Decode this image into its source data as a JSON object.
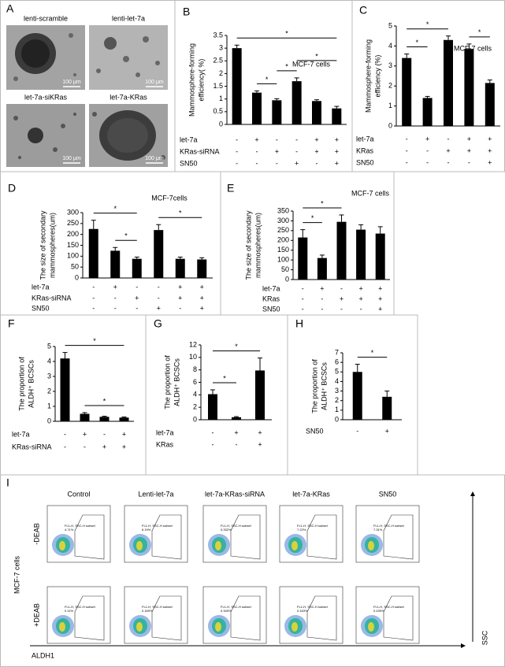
{
  "panel_a": {
    "panel_label": "A",
    "images": [
      {
        "label": "lenti-scramble",
        "scale_bar": "100 μm"
      },
      {
        "label": "lenti-let-7a",
        "scale_bar": "100 μm"
      },
      {
        "label": "let-7a-siKRas",
        "scale_bar": "100 μm"
      },
      {
        "label": "let-7a-KRas",
        "scale_bar": "100 μm"
      }
    ]
  },
  "chart_data": [
    {
      "type": "bar",
      "panel_label": "B",
      "y_label": [
        "Mammosphere-forming",
        "efficiency( %)"
      ],
      "annotation": "MCF-7 cells",
      "color": "#000000",
      "values": [
        3.0,
        1.25,
        0.95,
        1.7,
        0.92,
        0.63
      ],
      "errors": [
        0.12,
        0.07,
        0.06,
        0.13,
        0.05,
        0.08
      ],
      "ylim": [
        0,
        3.5
      ],
      "yticks": [
        0,
        0.5,
        1,
        1.5,
        2,
        2.5,
        3,
        3.5
      ],
      "conditions": [
        {
          "name": "let-7a",
          "signs": [
            "-",
            "+",
            "-",
            "-",
            "+",
            "+"
          ]
        },
        {
          "name": "KRas-siRNA",
          "signs": [
            "-",
            "-",
            "+",
            "-",
            "+",
            "+"
          ]
        },
        {
          "name": "SN50",
          "signs": [
            "-",
            "-",
            "-",
            "+",
            "-",
            "+"
          ]
        }
      ],
      "significance": [
        {
          "from": 1,
          "to": 2,
          "label": "*"
        },
        {
          "from": 2,
          "to": 3,
          "label": "*"
        },
        {
          "from": 3,
          "to": 5,
          "label": "*"
        },
        {
          "from": 0,
          "to": 5,
          "label": "*"
        }
      ]
    },
    {
      "type": "bar",
      "panel_label": "C",
      "y_label": [
        "Mammosphere-forming",
        "efficiency (%)"
      ],
      "annotation": "MCF-7 cells",
      "color": "#000000",
      "values": [
        3.4,
        1.4,
        4.3,
        3.85,
        2.15
      ],
      "errors": [
        0.2,
        0.08,
        0.2,
        0.25,
        0.15
      ],
      "ylim": [
        0,
        5
      ],
      "yticks": [
        0,
        1,
        2,
        3,
        4,
        5
      ],
      "conditions": [
        {
          "name": "let-7a",
          "signs": [
            "-",
            "+",
            "-",
            "+",
            "+"
          ]
        },
        {
          "name": "KRas",
          "signs": [
            "-",
            "-",
            "+",
            "+",
            "+"
          ]
        },
        {
          "name": "SN50",
          "signs": [
            "-",
            "-",
            "-",
            "-",
            "+"
          ]
        }
      ],
      "significance": [
        {
          "from": 0,
          "to": 1,
          "label": "*"
        },
        {
          "from": 3,
          "to": 4,
          "label": "*"
        },
        {
          "from": 0,
          "to": 2,
          "label": "*"
        }
      ]
    },
    {
      "type": "bar",
      "panel_label": "D",
      "y_label": [
        "The size of secondary",
        "mammospheres(um)"
      ],
      "annotation": "MCF-7cells",
      "color": "#000000",
      "values": [
        225,
        125,
        88,
        220,
        88,
        85
      ],
      "errors": [
        40,
        15,
        8,
        25,
        8,
        8
      ],
      "ylim": [
        0,
        300
      ],
      "yticks": [
        0,
        50,
        100,
        150,
        200,
        250,
        300
      ],
      "conditions": [
        {
          "name": "let-7a",
          "signs": [
            "-",
            "+",
            "-",
            "-",
            "+",
            "+"
          ]
        },
        {
          "name": "KRas-siRNA",
          "signs": [
            "-",
            "-",
            "+",
            "-",
            "+",
            "+"
          ]
        },
        {
          "name": "SN50",
          "signs": [
            "-",
            "-",
            "-",
            "+",
            "-",
            "+"
          ]
        }
      ],
      "significance": [
        {
          "from": 1,
          "to": 2,
          "label": "*"
        },
        {
          "from": 3,
          "to": 5,
          "label": "*"
        },
        {
          "from": 0,
          "to": 2,
          "label": "*"
        }
      ]
    },
    {
      "type": "bar",
      "panel_label": "E",
      "y_label": [
        "The size of secondary",
        "mammospheres(um)"
      ],
      "annotation": "MCF-7 cells",
      "color": "#000000",
      "values": [
        215,
        110,
        295,
        255,
        235
      ],
      "errors": [
        40,
        15,
        35,
        25,
        35
      ],
      "ylim": [
        0,
        350
      ],
      "yticks": [
        0,
        50,
        100,
        150,
        200,
        250,
        300,
        350
      ],
      "conditions": [
        {
          "name": "let-7a",
          "signs": [
            "-",
            "+",
            "-",
            "+",
            "+"
          ]
        },
        {
          "name": "KRas",
          "signs": [
            "-",
            "-",
            "+",
            "+",
            "+"
          ]
        },
        {
          "name": "SN50",
          "signs": [
            "-",
            "-",
            "-",
            "-",
            "+"
          ]
        }
      ],
      "significance": [
        {
          "from": 0,
          "to": 1,
          "label": "*"
        },
        {
          "from": 0,
          "to": 2,
          "label": "*"
        }
      ]
    },
    {
      "type": "bar",
      "panel_label": "F",
      "y_label": [
        "The proportion of",
        "ALDH⁺ BCSCs"
      ],
      "color": "#000000",
      "values": [
        4.2,
        0.5,
        0.3,
        0.25
      ],
      "errors": [
        0.4,
        0.08,
        0.04,
        0.04
      ],
      "ylim": [
        0,
        5
      ],
      "yticks": [
        0,
        1,
        2,
        3,
        4,
        5
      ],
      "conditions": [
        {
          "name": "let-7a",
          "signs": [
            "-",
            "+",
            "-",
            "+"
          ]
        },
        {
          "name": "KRas-siRNA",
          "signs": [
            "-",
            "-",
            "+",
            "+"
          ]
        }
      ],
      "significance": [
        {
          "from": 1,
          "to": 3,
          "label": "*"
        },
        {
          "from": 0,
          "to": 3,
          "label": "*"
        }
      ]
    },
    {
      "type": "bar",
      "panel_label": "G",
      "y_label": [
        "The proportion of",
        "ALDH⁺ BCSCs"
      ],
      "color": "#000000",
      "values": [
        4.1,
        0.4,
        7.9
      ],
      "errors": [
        0.7,
        0.1,
        2.0
      ],
      "ylim": [
        0,
        12
      ],
      "yticks": [
        0,
        2,
        4,
        6,
        8,
        10,
        12
      ],
      "conditions": [
        {
          "name": "let-7a",
          "signs": [
            "-",
            "+",
            "+"
          ]
        },
        {
          "name": "KRas",
          "signs": [
            "-",
            "-",
            "+"
          ]
        }
      ],
      "significance": [
        {
          "from": 0,
          "to": 1,
          "label": "*"
        },
        {
          "from": 0,
          "to": 2,
          "label": "*"
        }
      ]
    },
    {
      "type": "bar",
      "panel_label": "H",
      "y_label": [
        "The proportion of",
        "ALDH⁺ BCSCs"
      ],
      "color": "#000000",
      "values": [
        5.0,
        2.4
      ],
      "errors": [
        0.8,
        0.6
      ],
      "ylim": [
        0,
        7
      ],
      "yticks": [
        0,
        1,
        2,
        3,
        4,
        5,
        6,
        7
      ],
      "conditions": [
        {
          "name": "SN50",
          "signs": [
            "-",
            "+"
          ]
        }
      ],
      "significance": [
        {
          "from": 0,
          "to": 1,
          "label": "*"
        }
      ]
    }
  ],
  "panel_i": {
    "panel_label": "I",
    "columns": [
      "Control",
      "Lenti-let-7a",
      "let-7a-KRas-siRNA",
      "let-7a-KRas",
      "SN50"
    ],
    "rows": [
      "-DEAB",
      "+DEAB"
    ],
    "cell_line": "MCF-7 cells",
    "x_axis": "ALDH1",
    "y_axis": "SSC",
    "gate_label": "FL1-H, SSC-H subset",
    "gate_percent": [
      [
        "4.71%",
        "6.19%",
        "0.332%",
        "7.22%",
        "7.31%"
      ],
      [
        "0.11%",
        "0.169%",
        "0.169%",
        "0.163%",
        "0.439%"
      ]
    ]
  }
}
